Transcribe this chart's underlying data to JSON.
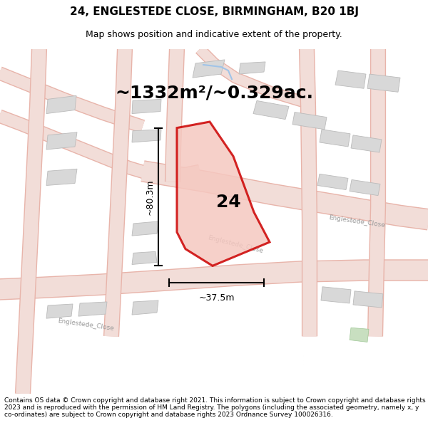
{
  "title_line1": "24, ENGLESTEDE CLOSE, BIRMINGHAM, B20 1BJ",
  "title_line2": "Map shows position and indicative extent of the property.",
  "area_text": "~1332m²/~0.329ac.",
  "dim_width": "~37.5m",
  "dim_height": "~80.3m",
  "label_24": "24",
  "footer_text": "Contains OS data © Crown copyright and database right 2021. This information is subject to Crown copyright and database rights 2023 and is reproduced with the permission of HM Land Registry. The polygons (including the associated geometry, namely x, y co-ordinates) are subject to Crown copyright and database rights 2023 Ordnance Survey 100026316.",
  "bg_color": "#ffffff",
  "map_bg": "#f9f6f3",
  "road_fill": "#f2ddd8",
  "road_edge": "#e8b4aa",
  "building_color": "#d8d8d8",
  "building_edge": "#bbbbbb",
  "property_fill": "#f5c8c0",
  "property_edge": "#cc0000",
  "property_edge_width": 2.2,
  "green_fill": "#c8dfc0",
  "title_fontsize": 11,
  "subtitle_fontsize": 9,
  "area_fontsize": 18,
  "label_fontsize": 16,
  "dim_fontsize": 9,
  "footer_fontsize": 6.5,
  "road_label_color": "#999999",
  "road_label_size": 6.5
}
